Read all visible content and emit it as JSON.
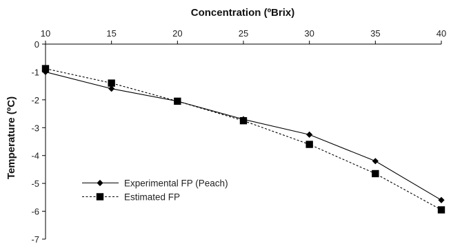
{
  "chart_data": {
    "type": "line",
    "title": "",
    "xlabel": "Concentration (ºBrix)",
    "ylabel": "Temperature (ºC)",
    "x_axis_position": "top",
    "x": [
      10,
      15,
      20,
      25,
      30,
      35,
      40
    ],
    "x_ticks": [
      "10",
      "15",
      "20",
      "25",
      "30",
      "35",
      "40"
    ],
    "y_ticks": [
      "0",
      "-1",
      "-2",
      "-3",
      "-4",
      "-5",
      "-6",
      "-7"
    ],
    "xlim": [
      10,
      40
    ],
    "ylim": [
      -7,
      0
    ],
    "grid": false,
    "legend_position": "lower-left",
    "series": [
      {
        "name": "Experimental FP (Peach)",
        "marker": "diamond",
        "line_style": "solid",
        "color": "#000000",
        "values": [
          -1.0,
          -1.6,
          -2.05,
          -2.7,
          -3.25,
          -4.2,
          -5.6
        ]
      },
      {
        "name": "Estimated FP",
        "marker": "square",
        "line_style": "dashed",
        "color": "#000000",
        "values": [
          -0.88,
          -1.4,
          -2.05,
          -2.75,
          -3.6,
          -4.65,
          -5.95
        ]
      }
    ]
  }
}
